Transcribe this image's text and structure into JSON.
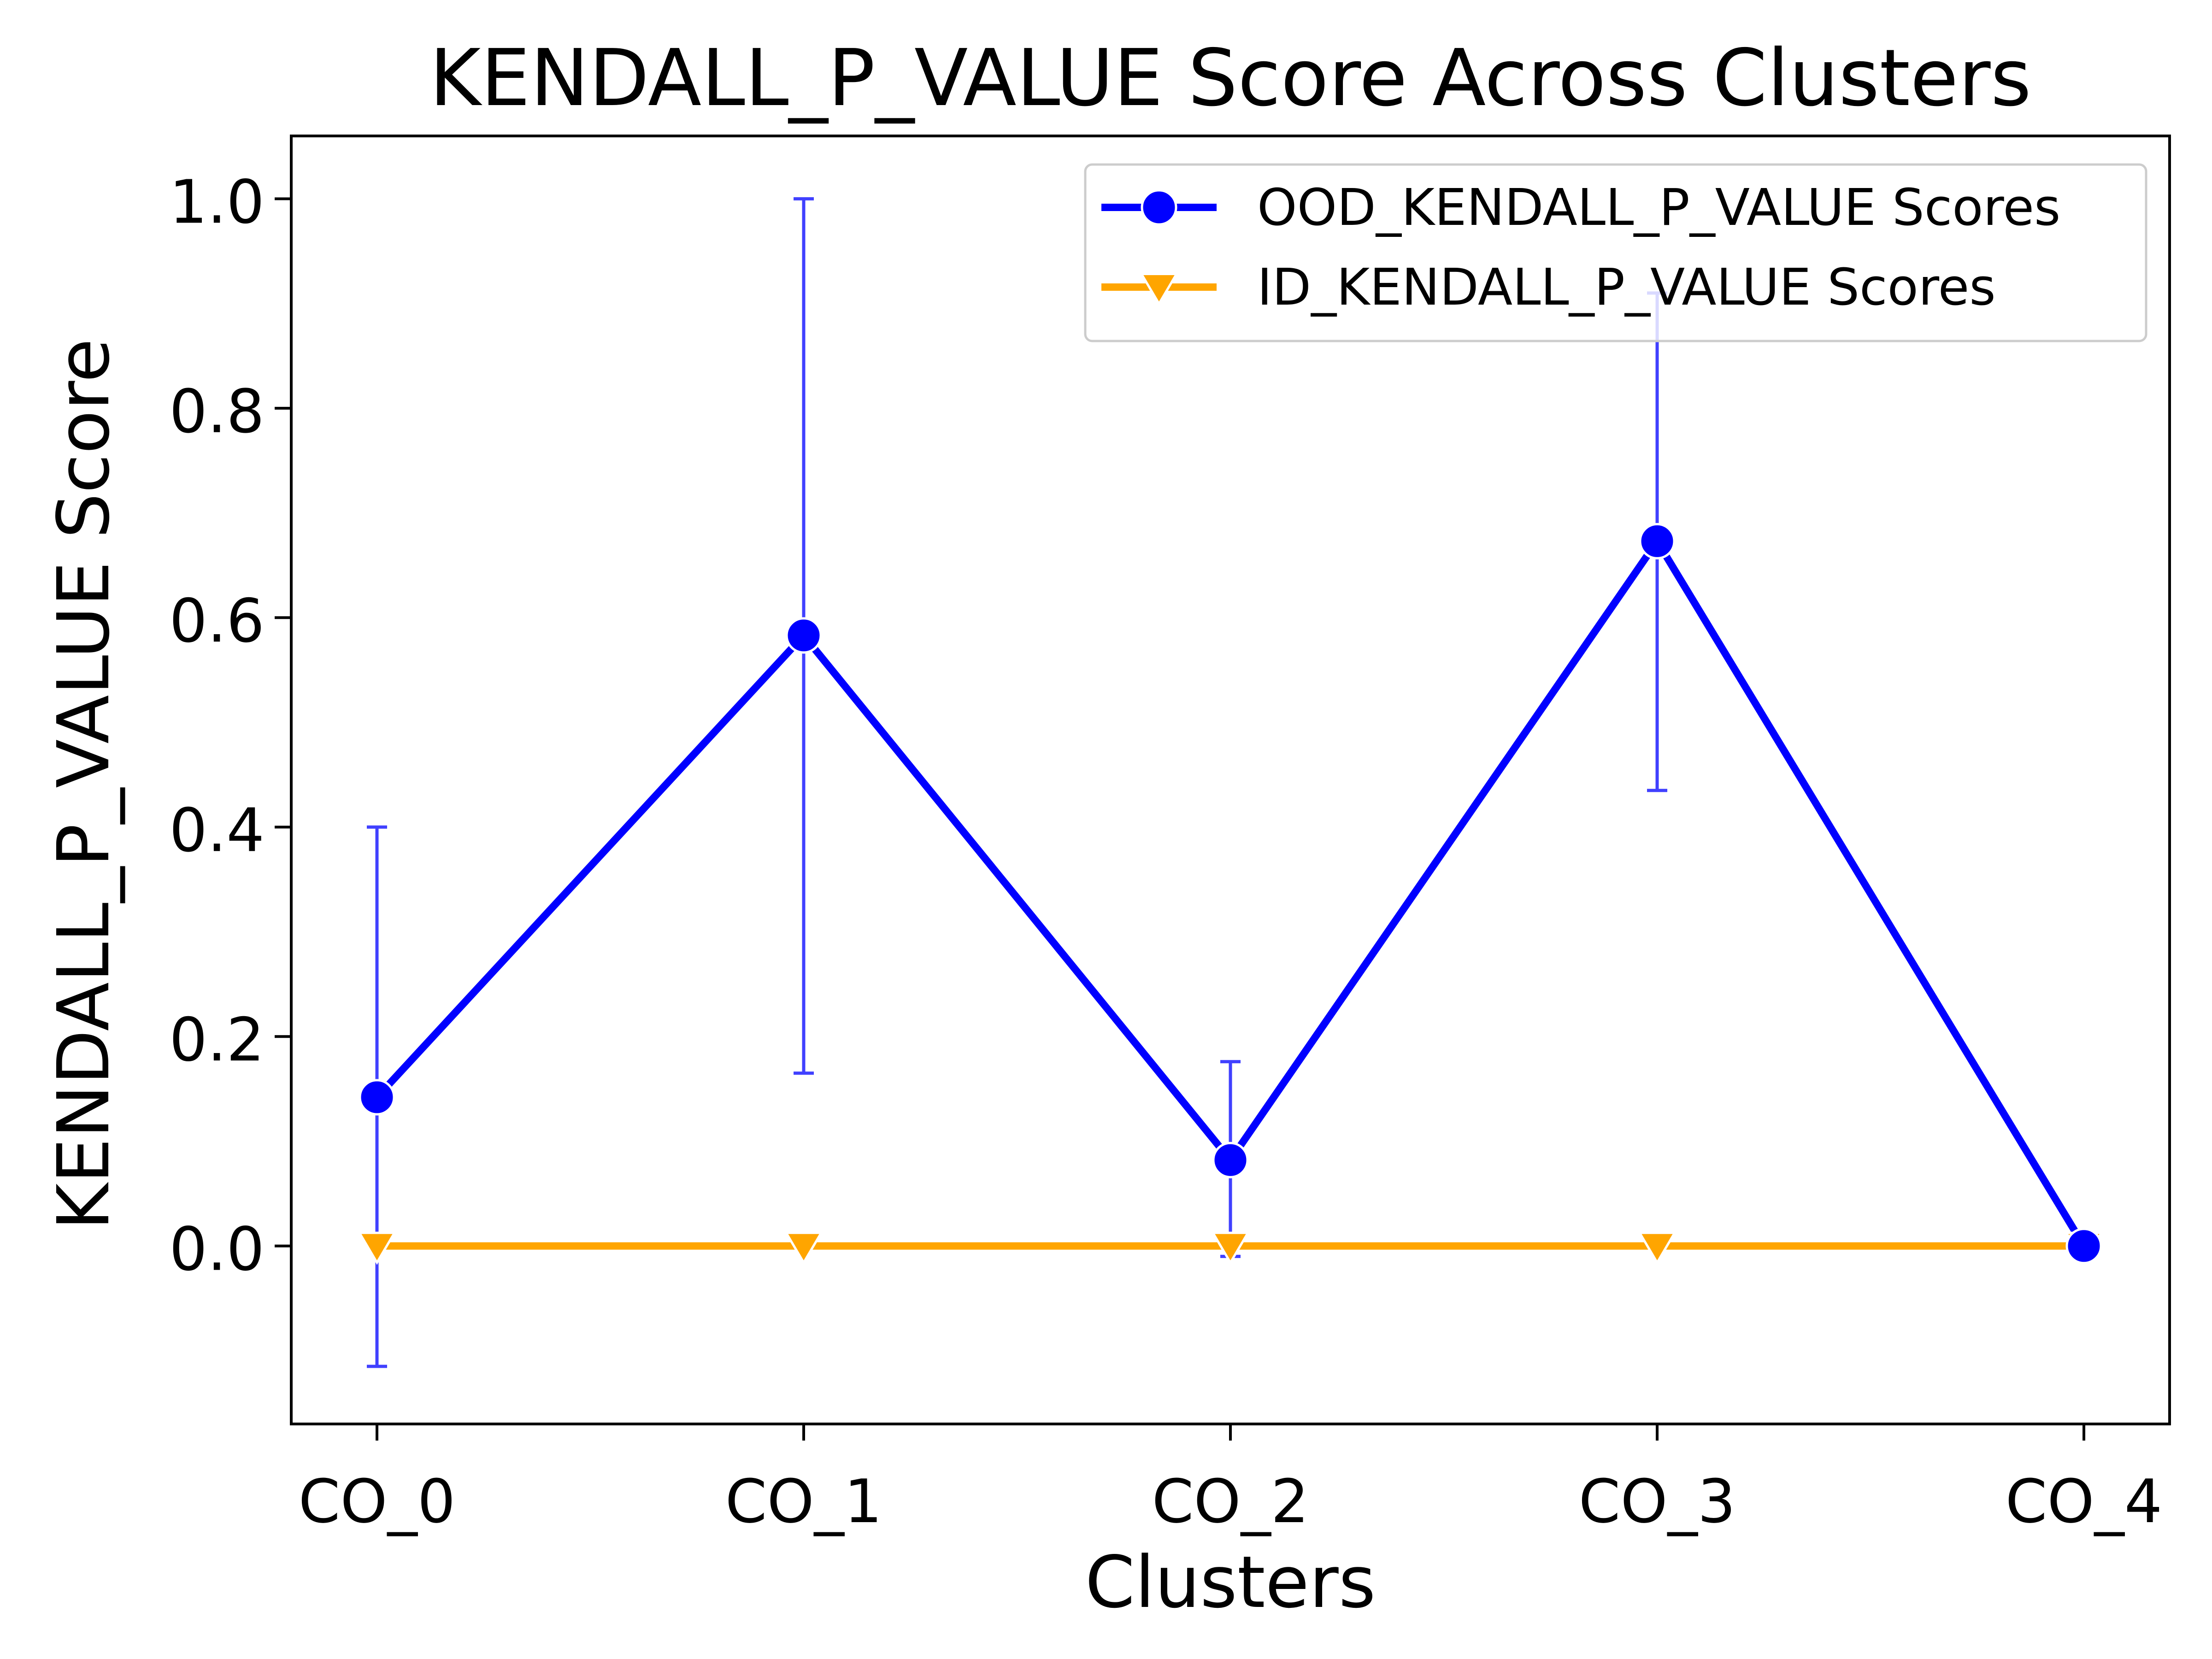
{
  "chart_data": {
    "type": "line",
    "title": "KENDALL_P_VALUE Score Across Clusters",
    "xlabel": "Clusters",
    "ylabel": "KENDALL_P_VALUE Score",
    "categories": [
      "CO_0",
      "CO_1",
      "CO_2",
      "CO_3",
      "CO_4"
    ],
    "ylim": [
      -0.17,
      1.06
    ],
    "yticks": [
      0.0,
      0.2,
      0.4,
      0.6,
      0.8,
      1.0
    ],
    "ytick_labels": [
      "0.0",
      "0.2",
      "0.4",
      "0.6",
      "0.8",
      "1.0"
    ],
    "grid": false,
    "legend_position": "top-right",
    "series": [
      {
        "name": "OOD_KENDALL_P_VALUE Scores",
        "color": "#0000ff",
        "marker": "circle",
        "values": [
          0.142,
          0.583,
          0.082,
          0.673,
          0.0
        ],
        "error_low": [
          -0.115,
          0.165,
          -0.01,
          0.435,
          0.0
        ],
        "error_high": [
          0.4,
          1.0,
          0.176,
          0.91,
          0.0
        ]
      },
      {
        "name": "ID_KENDALL_P_VALUE Scores",
        "color": "#ffa500",
        "marker": "triangle-down",
        "values": [
          0.0,
          0.0,
          0.0,
          0.0,
          0.0
        ]
      }
    ]
  }
}
